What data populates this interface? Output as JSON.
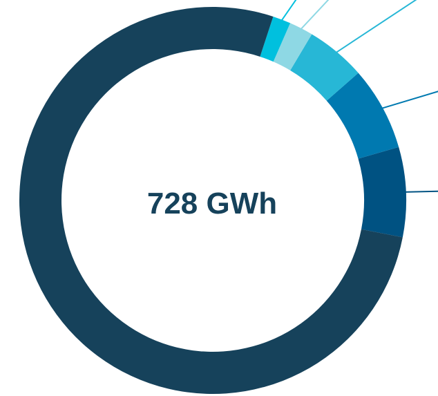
{
  "chart_data": {
    "type": "pie",
    "title": "",
    "center_label": "728 GWh",
    "slices": [
      {
        "value": 0.075,
        "color": "#005282"
      },
      {
        "value": 0.07,
        "color": "#0079b0"
      },
      {
        "value": 0.05,
        "color": "#27b7d6"
      },
      {
        "value": 0.02,
        "color": "#8ed8e4"
      },
      {
        "value": 0.015,
        "color": "#00c0de"
      },
      {
        "value": 0.77,
        "color": "#16425b"
      }
    ],
    "leader_colors": [
      "#005282",
      "#0079b0",
      "#27b7d6",
      "#8ed8e4",
      "#00c0de"
    ]
  }
}
